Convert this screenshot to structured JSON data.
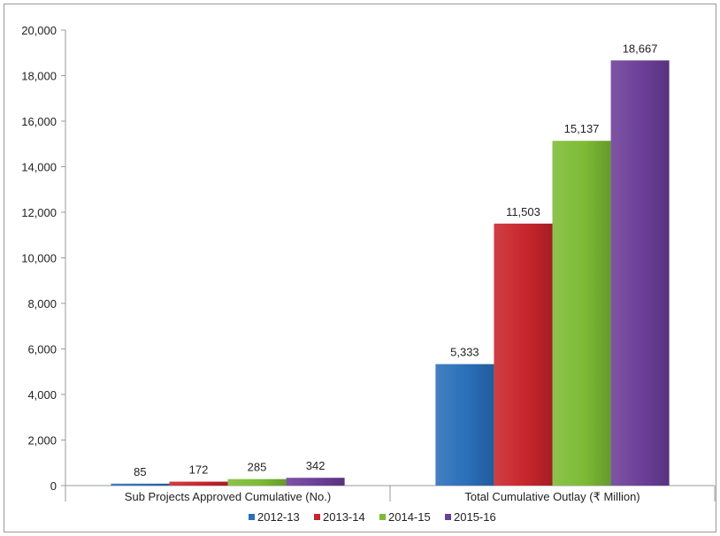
{
  "chart_data": {
    "type": "bar",
    "title": "",
    "xlabel": "",
    "ylabel": "",
    "categories": [
      "Sub Projects Approved Cumulative (No.)",
      "Total Cumulative Outlay (₹ Million)"
    ],
    "series": [
      {
        "name": "2012-13",
        "color": "#2a6fba",
        "values": [
          85,
          5333
        ],
        "labels": [
          "85",
          "5,333"
        ]
      },
      {
        "name": "2013-14",
        "color": "#c8252c",
        "values": [
          172,
          11503
        ],
        "labels": [
          "172",
          "11,503"
        ]
      },
      {
        "name": "2014-15",
        "color": "#7dbb35",
        "values": [
          285,
          15137
        ],
        "labels": [
          "285",
          "15,137"
        ]
      },
      {
        "name": "2015-16",
        "color": "#6b3e98",
        "values": [
          342,
          18667
        ],
        "labels": [
          "342",
          "18,667"
        ]
      }
    ],
    "ylim": [
      0,
      20000
    ],
    "yticks": [
      0,
      2000,
      4000,
      6000,
      8000,
      10000,
      12000,
      14000,
      16000,
      18000,
      20000
    ],
    "ytick_labels": [
      "0",
      "2,000",
      "4,000",
      "6,000",
      "8,000",
      "10,000",
      "12,000",
      "14,000",
      "16,000",
      "18,000",
      "20,000"
    ],
    "grid": false,
    "legend_position": "bottom"
  }
}
